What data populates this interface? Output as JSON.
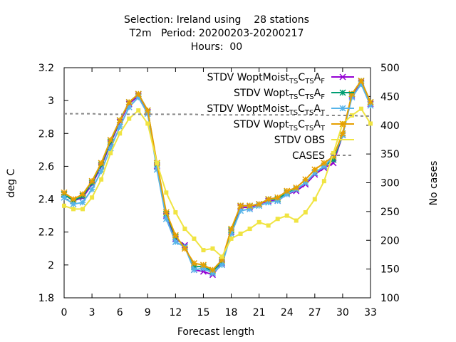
{
  "chart_data": {
    "type": "line",
    "title": [
      "Selection: Ireland using    28 stations",
      "T2m   Period: 20200203-20200217",
      "Hours:  00"
    ],
    "xlabel": "Forecast length",
    "ylabel": "deg C",
    "y2label": "No cases",
    "x": [
      0,
      1,
      2,
      3,
      4,
      5,
      6,
      7,
      8,
      9,
      10,
      11,
      12,
      13,
      14,
      15,
      16,
      17,
      18,
      19,
      20,
      21,
      22,
      23,
      24,
      25,
      26,
      27,
      28,
      29,
      30,
      31,
      32,
      33
    ],
    "xlim": [
      0,
      33
    ],
    "xticks": [
      0,
      3,
      6,
      9,
      12,
      15,
      18,
      21,
      24,
      27,
      30,
      33
    ],
    "ylim": [
      1.8,
      3.2
    ],
    "yticks": [
      1.8,
      2,
      2.2,
      2.4,
      2.6,
      2.8,
      3,
      3.2
    ],
    "y2lim": [
      100,
      500
    ],
    "y2ticks": [
      100,
      150,
      200,
      250,
      300,
      350,
      400,
      450,
      500
    ],
    "legend": "top-right",
    "series": [
      {
        "name": "STDV WoptMoist_{TS}C_{TS}A_{F}",
        "color": "#9400d3",
        "marker": "x",
        "values": [
          2.43,
          2.39,
          2.41,
          2.49,
          2.6,
          2.74,
          2.87,
          2.98,
          3.03,
          2.93,
          2.6,
          2.3,
          2.16,
          2.12,
          1.97,
          1.96,
          1.94,
          2.01,
          2.2,
          2.35,
          2.35,
          2.37,
          2.39,
          2.39,
          2.43,
          2.45,
          2.49,
          2.55,
          2.59,
          2.62,
          2.79,
          3.03,
          3.11,
          2.98
        ]
      },
      {
        "name": "STDV Wopt_{TS}C_{TS}A_{F}",
        "color": "#009e73",
        "marker": "star",
        "values": [
          2.43,
          2.39,
          2.42,
          2.5,
          2.61,
          2.75,
          2.88,
          2.99,
          3.04,
          2.94,
          2.61,
          2.31,
          2.17,
          2.11,
          1.99,
          1.99,
          1.96,
          2.02,
          2.21,
          2.36,
          2.36,
          2.37,
          2.4,
          2.4,
          2.44,
          2.46,
          2.5,
          2.56,
          2.6,
          2.64,
          2.79,
          3.04,
          3.12,
          2.99
        ]
      },
      {
        "name": "STDV WoptMoist_{TS}C_{TS}A_{T}",
        "color": "#56b4e9",
        "marker": "star",
        "values": [
          2.41,
          2.37,
          2.38,
          2.46,
          2.57,
          2.71,
          2.84,
          2.96,
          3.02,
          2.92,
          2.58,
          2.28,
          2.14,
          2.11,
          1.97,
          1.98,
          1.95,
          2.0,
          2.19,
          2.33,
          2.34,
          2.36,
          2.38,
          2.39,
          2.43,
          2.46,
          2.5,
          2.56,
          2.6,
          2.66,
          2.79,
          3.02,
          3.1,
          2.97
        ]
      },
      {
        "name": "STDV Wopt_{TS}C_{TS}A_{T}",
        "color": "#e69f00",
        "marker": "star",
        "values": [
          2.44,
          2.4,
          2.43,
          2.51,
          2.62,
          2.76,
          2.88,
          2.99,
          3.04,
          2.94,
          2.62,
          2.32,
          2.18,
          2.1,
          2.01,
          2.0,
          1.97,
          2.03,
          2.22,
          2.36,
          2.36,
          2.37,
          2.4,
          2.41,
          2.45,
          2.47,
          2.52,
          2.58,
          2.62,
          2.66,
          2.8,
          3.04,
          3.12,
          2.99
        ]
      },
      {
        "name": "STDV OBS",
        "color": "#f0e442",
        "marker": "square",
        "values": [
          2.36,
          2.34,
          2.34,
          2.41,
          2.52,
          2.68,
          2.8,
          2.89,
          2.94,
          2.86,
          2.62,
          2.44,
          2.32,
          2.22,
          2.16,
          2.09,
          2.1,
          2.05,
          2.16,
          2.19,
          2.22,
          2.26,
          2.24,
          2.28,
          2.3,
          2.27,
          2.32,
          2.4,
          2.51,
          2.68,
          2.86,
          2.91,
          2.95,
          2.86
        ]
      },
      {
        "name": "CASES",
        "color": "#888888",
        "marker": "none",
        "dash": true,
        "axis": "y2",
        "values": [
          420,
          420,
          420,
          420,
          419,
          419,
          419,
          419,
          419,
          419,
          419,
          419,
          419,
          419,
          419,
          418,
          418,
          418,
          418,
          418,
          418,
          418,
          418,
          418,
          418,
          418,
          418,
          418,
          417,
          417,
          417,
          417,
          416,
          416
        ]
      }
    ]
  }
}
